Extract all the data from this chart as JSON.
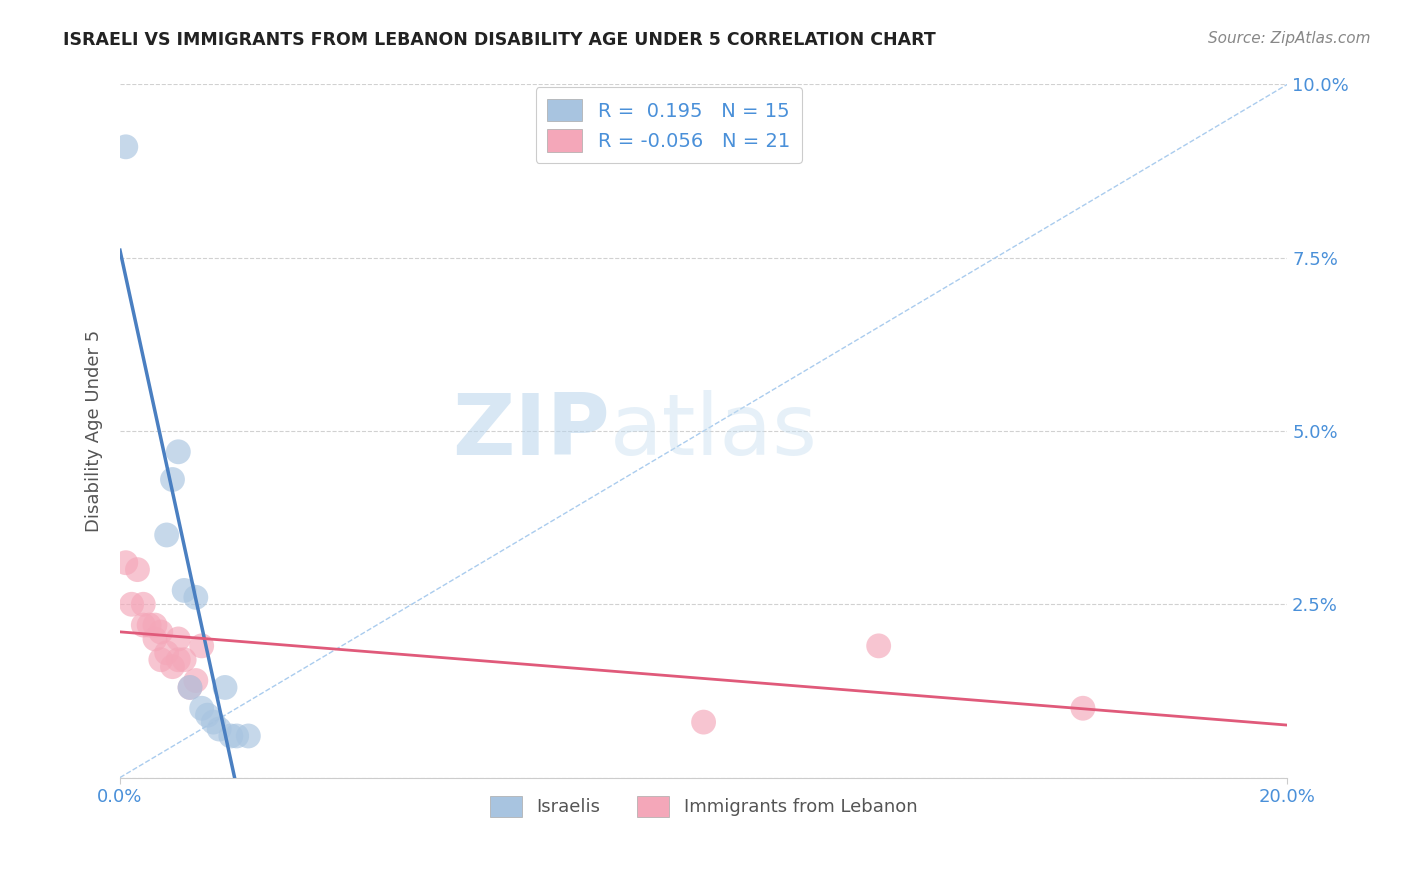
{
  "title": "ISRAELI VS IMMIGRANTS FROM LEBANON DISABILITY AGE UNDER 5 CORRELATION CHART",
  "source": "Source: ZipAtlas.com",
  "ylabel": "Disability Age Under 5",
  "xlim": [
    0.0,
    0.2
  ],
  "ylim": [
    0.0,
    0.1
  ],
  "ytick_values": [
    0.0,
    0.025,
    0.05,
    0.075,
    0.1
  ],
  "ytick_labels": [
    "",
    "2.5%",
    "5.0%",
    "7.5%",
    "10.0%"
  ],
  "legend_R_israeli": " 0.195",
  "legend_N_israeli": "15",
  "legend_R_lebanon": "-0.056",
  "legend_N_lebanon": "21",
  "israeli_color": "#a8c4e0",
  "lebanon_color": "#f4a7b9",
  "israeli_line_color": "#4a7fc1",
  "lebanon_line_color": "#e05a7a",
  "ref_line_color": "#aaccee",
  "watermark_zip": "ZIP",
  "watermark_atlas": "atlas",
  "israeli_points_x": [
    0.001,
    0.008,
    0.009,
    0.01,
    0.011,
    0.012,
    0.013,
    0.014,
    0.015,
    0.016,
    0.017,
    0.018,
    0.019,
    0.02,
    0.022
  ],
  "israeli_points_y": [
    0.091,
    0.035,
    0.043,
    0.047,
    0.027,
    0.013,
    0.026,
    0.01,
    0.009,
    0.008,
    0.007,
    0.013,
    0.006,
    0.006,
    0.006
  ],
  "lebanon_points_x": [
    0.001,
    0.002,
    0.003,
    0.004,
    0.004,
    0.005,
    0.006,
    0.006,
    0.007,
    0.007,
    0.008,
    0.009,
    0.01,
    0.01,
    0.011,
    0.012,
    0.013,
    0.014,
    0.1,
    0.13,
    0.165
  ],
  "lebanon_points_y": [
    0.031,
    0.025,
    0.03,
    0.022,
    0.025,
    0.022,
    0.02,
    0.022,
    0.021,
    0.017,
    0.018,
    0.016,
    0.017,
    0.02,
    0.017,
    0.013,
    0.014,
    0.019,
    0.008,
    0.019,
    0.01
  ],
  "background_color": "#ffffff"
}
